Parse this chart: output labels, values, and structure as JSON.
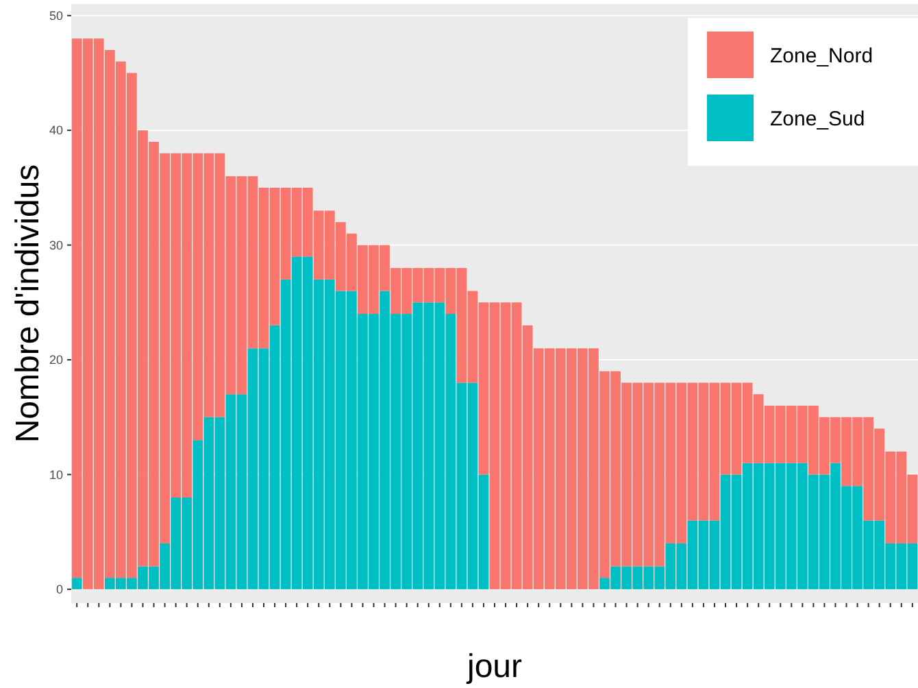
{
  "chart_data": {
    "type": "bar",
    "stacked": true,
    "xlabel": "jour",
    "ylabel": "Nombre d'individus",
    "categories": [
      null,
      null,
      null,
      null,
      null,
      null,
      null,
      null,
      null,
      null,
      null,
      null,
      null,
      null,
      null,
      null,
      null,
      null,
      null,
      null,
      null,
      null,
      null,
      null,
      null,
      null,
      null,
      null,
      null,
      null,
      null,
      null,
      null,
      null,
      null,
      null,
      null,
      null,
      null,
      null,
      null,
      null,
      null,
      null,
      null,
      null,
      null,
      null,
      null,
      null,
      null,
      null,
      null,
      null,
      null,
      null,
      null,
      null,
      null,
      null,
      null,
      null,
      null,
      null,
      null,
      null,
      null,
      null,
      null,
      null,
      null,
      null,
      null,
      null,
      null,
      null,
      null
    ],
    "series": [
      {
        "name": "Zone_Sud",
        "color": "#00bfc4",
        "values": [
          1,
          0,
          0,
          1,
          1,
          1,
          2,
          2,
          4,
          8,
          8,
          13,
          15,
          15,
          17,
          17,
          21,
          21,
          23,
          27,
          29,
          29,
          27,
          27,
          26,
          26,
          24,
          24,
          26,
          24,
          24,
          25,
          25,
          25,
          24,
          18,
          18,
          10,
          0,
          0,
          0,
          0,
          0,
          0,
          0,
          0,
          0,
          0,
          1,
          2,
          2,
          2,
          2,
          2,
          4,
          4,
          6,
          6,
          6,
          10,
          10,
          11,
          11,
          11,
          11,
          11,
          11,
          10,
          10,
          11,
          9,
          9,
          6,
          6,
          4,
          4,
          4
        ]
      },
      {
        "name": "Zone_Nord",
        "color": "#f8766d",
        "values": [
          47,
          48,
          48,
          46,
          45,
          44,
          38,
          37,
          34,
          30,
          30,
          25,
          23,
          23,
          19,
          19,
          15,
          14,
          12,
          8,
          6,
          6,
          6,
          6,
          6,
          5,
          6,
          6,
          4,
          4,
          4,
          3,
          3,
          3,
          4,
          10,
          8,
          15,
          25,
          25,
          25,
          23,
          21,
          21,
          21,
          21,
          21,
          21,
          18,
          17,
          16,
          16,
          16,
          16,
          14,
          14,
          12,
          12,
          12,
          8,
          8,
          7,
          6,
          5,
          5,
          5,
          5,
          6,
          5,
          4,
          6,
          6,
          9,
          8,
          8,
          8,
          6
        ]
      }
    ],
    "ylim": [
      -1.2,
      51
    ],
    "yticks": [
      0,
      10,
      20,
      30,
      40,
      50
    ],
    "grid": "y",
    "legend": "top right"
  }
}
